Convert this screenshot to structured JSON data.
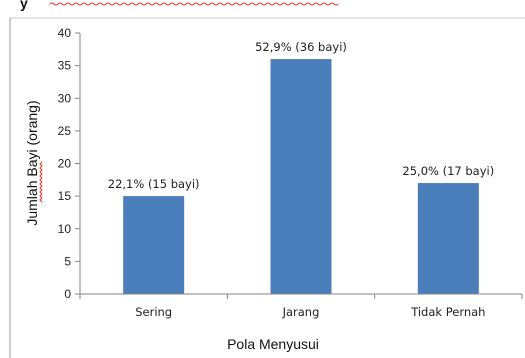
{
  "chart_data": {
    "type": "bar",
    "categories": [
      "Sering",
      "Jarang",
      "Tidak Pernah"
    ],
    "values": [
      15,
      36,
      17
    ],
    "data_labels": [
      "22,1% (15 bayi)",
      "52,9% (36 bayi)",
      "25,0% (17 bayi)"
    ],
    "title": "",
    "xlabel": "Pola Menyusui",
    "ylabel": "Jumlah Bayi (orang)",
    "ylim": [
      0,
      40
    ],
    "yticks": [
      0,
      5,
      10,
      15,
      20,
      25,
      30,
      35,
      40
    ],
    "grid": false,
    "legend": "none",
    "bar_color": "#4a7ebb"
  },
  "colors": {
    "bar": "#4a7ebb",
    "axis": "#868686",
    "spellcheck_underline": "#d9342b"
  }
}
